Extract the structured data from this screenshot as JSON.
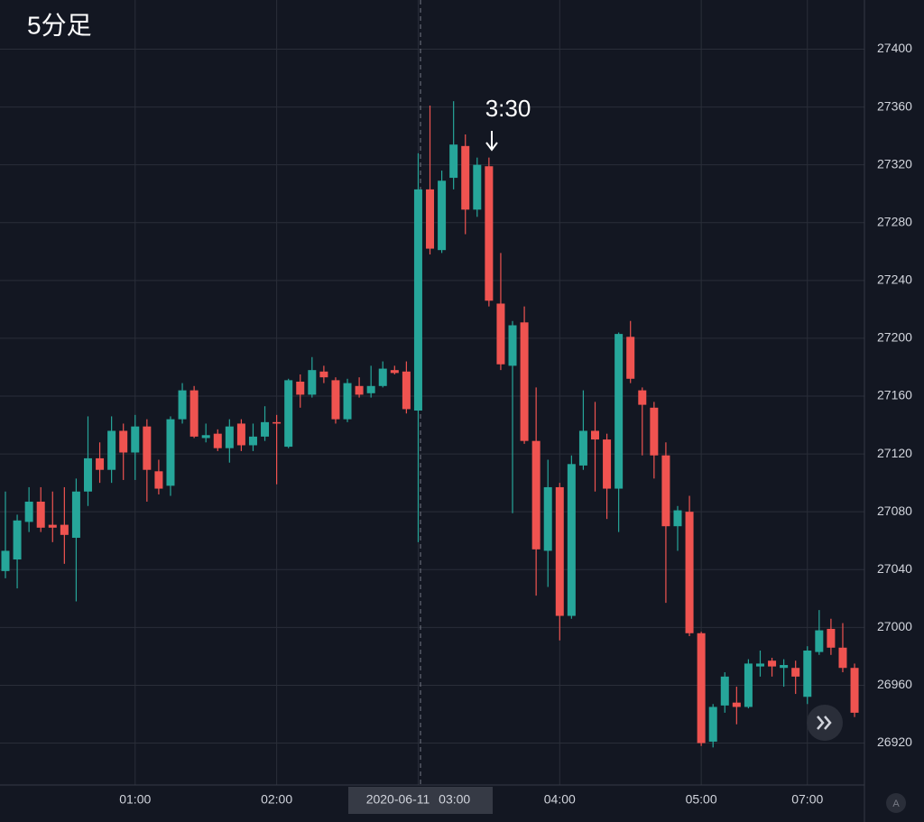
{
  "chart_data": {
    "type": "candlestick",
    "title": "5分足",
    "annotation": "3:30",
    "categories": [
      null,
      null,
      null,
      null,
      null,
      null,
      null,
      null,
      null,
      null,
      null,
      "01:00",
      null,
      null,
      null,
      null,
      null,
      null,
      null,
      null,
      null,
      null,
      null,
      "02:00",
      null,
      null,
      null,
      null,
      null,
      null,
      null,
      null,
      null,
      null,
      null,
      "2020-06-11 03:00",
      null,
      null,
      null,
      null,
      null,
      null,
      null,
      null,
      null,
      null,
      null,
      "04:00",
      null,
      null,
      null,
      null,
      null,
      null,
      null,
      null,
      null,
      null,
      null,
      "05:00",
      null,
      null,
      null,
      null,
      null,
      null,
      null,
      null,
      "07:00",
      null,
      null,
      null,
      null
    ],
    "open": [
      27039,
      27047,
      27073,
      27087,
      27071,
      27071,
      27062,
      27094,
      27117,
      27109,
      27136,
      27121,
      27139,
      27108,
      27098,
      27144,
      27164,
      27131,
      27134,
      27124,
      27141,
      27126,
      27132,
      27142,
      27125,
      27170,
      27161,
      27177,
      27171,
      27144,
      27167,
      27162,
      27167,
      27178,
      27177,
      27150,
      27303,
      27261,
      27311,
      27333,
      27289,
      27319,
      27224,
      27181,
      27211,
      27129,
      27053,
      27097,
      27008,
      27112,
      27136,
      27130,
      27096,
      27201,
      27164,
      27152,
      27119,
      27070,
      27080,
      26996,
      26921,
      26946,
      26948,
      26945,
      26973,
      26977,
      26972,
      26972,
      26952,
      26983,
      26999,
      26986,
      26972
    ],
    "high": [
      27094,
      27078,
      27097,
      27097,
      27094,
      27097,
      27103,
      27146,
      27128,
      27146,
      27141,
      27147,
      27144,
      27116,
      27146,
      27169,
      27167,
      27141,
      27137,
      27144,
      27144,
      27141,
      27153,
      27147,
      27172,
      27175,
      27187,
      27181,
      27173,
      27172,
      27173,
      27181,
      27184,
      27181,
      27184,
      27328,
      27361,
      27316,
      27364,
      27341,
      27325,
      27325,
      27259,
      27212,
      27222,
      27166,
      27116,
      27100,
      27119,
      27164,
      27156,
      27134,
      27204,
      27212,
      27166,
      27156,
      27128,
      27084,
      27091,
      26997,
      26947,
      26969,
      26959,
      26978,
      26984,
      26979,
      26978,
      26977,
      26987,
      27012,
      27006,
      27003,
      26975
    ],
    "low": [
      27034,
      27027,
      27066,
      27066,
      27059,
      27044,
      27018,
      27084,
      27100,
      27100,
      27102,
      27102,
      27087,
      27092,
      27091,
      27141,
      27131,
      27128,
      27122,
      27114,
      27122,
      27122,
      27129,
      27099,
      27124,
      27152,
      27159,
      27169,
      27141,
      27142,
      27159,
      27159,
      27166,
      27175,
      27148,
      27059,
      27258,
      27259,
      27303,
      27272,
      27284,
      27222,
      27178,
      27079,
      27127,
      27022,
      27028,
      26991,
      27006,
      27109,
      27094,
      27075,
      27066,
      27169,
      27119,
      27103,
      27017,
      27053,
      26994,
      26918,
      26917,
      26941,
      26933,
      26944,
      26966,
      26966,
      26959,
      26954,
      26947,
      26981,
      26981,
      26969,
      26938
    ],
    "close": [
      27053,
      27074,
      27087,
      27069,
      27069,
      27064,
      27094,
      27117,
      27109,
      27136,
      27121,
      27139,
      27109,
      27096,
      27144,
      27164,
      27132,
      27133,
      27124,
      27139,
      27126,
      27132,
      27142,
      27141,
      27171,
      27161,
      27178,
      27173,
      27144,
      27169,
      27161,
      27167,
      27179,
      27176,
      27151,
      27303,
      27262,
      27309,
      27334,
      27289,
      27320,
      27226,
      27182,
      27209,
      27129,
      27054,
      27097,
      27008,
      27113,
      27136,
      27130,
      27096,
      27203,
      27172,
      27154,
      27119,
      27070,
      27081,
      26996,
      26920,
      26945,
      26966,
      26945,
      26975,
      26975,
      26973,
      26974,
      26966,
      26984,
      26998,
      26986,
      26972,
      26941
    ],
    "up_color": "#26a69a",
    "down_color": "#ef5350",
    "ylim": [
      26891,
      27434
    ],
    "yticks": [
      26920,
      26960,
      27000,
      27040,
      27080,
      27120,
      27160,
      27200,
      27240,
      27280,
      27320,
      27360,
      27400
    ],
    "grid": true
  }
}
